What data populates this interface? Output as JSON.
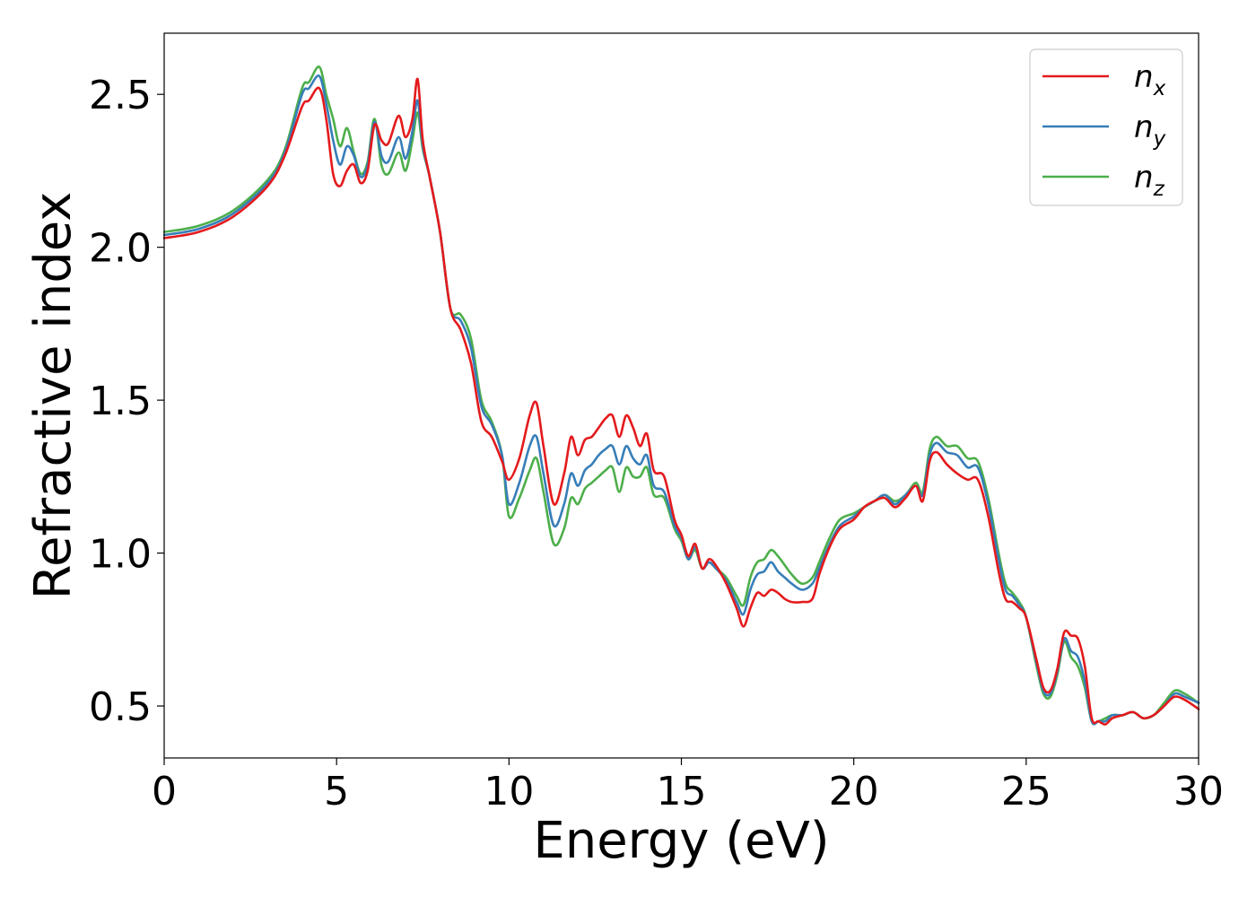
{
  "chart_data": {
    "type": "line",
    "title": "",
    "xlabel": "Energy (eV)",
    "ylabel": "Refractive index",
    "xlim": [
      0,
      30
    ],
    "ylim": [
      0.33,
      2.7
    ],
    "xticks": [
      0,
      5,
      10,
      15,
      20,
      25,
      30
    ],
    "xtick_labels": [
      "0",
      "5",
      "10",
      "15",
      "20",
      "25",
      "30"
    ],
    "yticks": [
      0.5,
      1.0,
      1.5,
      2.0,
      2.5
    ],
    "ytick_labels": [
      "0.5",
      "1.0",
      "1.5",
      "2.0",
      "2.5"
    ],
    "grid": false,
    "legend_position": "top-right",
    "series": [
      {
        "name": "n_x",
        "label_main": "n",
        "label_sub": "x",
        "color": "#e41a1c",
        "x": [
          0,
          1,
          2,
          3,
          3.5,
          4,
          4.2,
          4.5,
          4.7,
          4.9,
          5.1,
          5.3,
          5.5,
          5.7,
          5.9,
          6.1,
          6.3,
          6.5,
          6.8,
          7.0,
          7.2,
          7.35,
          7.5,
          7.7,
          8.0,
          8.3,
          8.6,
          8.9,
          9.2,
          9.5,
          9.8,
          10.0,
          10.3,
          10.6,
          10.8,
          11.0,
          11.3,
          11.6,
          11.8,
          12.0,
          12.2,
          12.4,
          12.6,
          12.8,
          13.0,
          13.2,
          13.4,
          13.6,
          13.8,
          14.0,
          14.2,
          14.5,
          14.8,
          15.0,
          15.2,
          15.4,
          15.6,
          15.8,
          16.0,
          16.3,
          16.6,
          16.8,
          17.0,
          17.2,
          17.4,
          17.6,
          17.8,
          18.0,
          18.2,
          18.5,
          18.8,
          19.0,
          19.3,
          19.6,
          20.0,
          20.3,
          20.6,
          20.9,
          21.2,
          21.5,
          21.8,
          22.0,
          22.2,
          22.4,
          22.7,
          23.0,
          23.3,
          23.6,
          23.9,
          24.2,
          24.4,
          24.6,
          24.8,
          25.0,
          25.3,
          25.5,
          25.7,
          25.9,
          26.1,
          26.3,
          26.5,
          26.7,
          26.9,
          27.1,
          27.3,
          27.5,
          27.8,
          28.1,
          28.4,
          28.7,
          29.0,
          29.3,
          29.6,
          30.0
        ],
        "y": [
          2.03,
          2.05,
          2.1,
          2.2,
          2.3,
          2.46,
          2.48,
          2.52,
          2.42,
          2.24,
          2.2,
          2.25,
          2.27,
          2.21,
          2.25,
          2.4,
          2.35,
          2.34,
          2.43,
          2.36,
          2.42,
          2.55,
          2.35,
          2.23,
          2.05,
          1.8,
          1.73,
          1.62,
          1.43,
          1.38,
          1.3,
          1.24,
          1.31,
          1.45,
          1.49,
          1.35,
          1.16,
          1.26,
          1.38,
          1.32,
          1.37,
          1.38,
          1.41,
          1.44,
          1.45,
          1.38,
          1.45,
          1.41,
          1.35,
          1.39,
          1.27,
          1.25,
          1.11,
          1.06,
          0.99,
          1.03,
          0.95,
          0.98,
          0.96,
          0.9,
          0.82,
          0.76,
          0.82,
          0.87,
          0.86,
          0.88,
          0.87,
          0.85,
          0.84,
          0.84,
          0.85,
          0.93,
          1.02,
          1.08,
          1.11,
          1.15,
          1.17,
          1.18,
          1.15,
          1.18,
          1.22,
          1.17,
          1.3,
          1.33,
          1.29,
          1.26,
          1.24,
          1.24,
          1.12,
          0.94,
          0.85,
          0.84,
          0.82,
          0.79,
          0.65,
          0.56,
          0.55,
          0.62,
          0.74,
          0.73,
          0.72,
          0.63,
          0.46,
          0.45,
          0.44,
          0.46,
          0.47,
          0.48,
          0.46,
          0.47,
          0.5,
          0.53,
          0.52,
          0.49
        ]
      },
      {
        "name": "n_y",
        "label_main": "n",
        "label_sub": "y",
        "color": "#377eb8",
        "x": [
          0,
          1,
          2,
          3,
          3.5,
          4,
          4.2,
          4.5,
          4.7,
          4.9,
          5.1,
          5.3,
          5.5,
          5.7,
          5.9,
          6.1,
          6.3,
          6.5,
          6.8,
          7.0,
          7.2,
          7.35,
          7.5,
          7.7,
          8.0,
          8.3,
          8.6,
          8.9,
          9.2,
          9.5,
          9.8,
          10.0,
          10.3,
          10.6,
          10.8,
          11.0,
          11.3,
          11.6,
          11.8,
          12.0,
          12.2,
          12.4,
          12.6,
          12.8,
          13.0,
          13.2,
          13.4,
          13.6,
          13.8,
          14.0,
          14.2,
          14.5,
          14.8,
          15.0,
          15.2,
          15.4,
          15.6,
          15.8,
          16.0,
          16.3,
          16.6,
          16.8,
          17.0,
          17.2,
          17.4,
          17.6,
          17.8,
          18.0,
          18.2,
          18.5,
          18.8,
          19.0,
          19.3,
          19.6,
          20.0,
          20.3,
          20.6,
          20.9,
          21.2,
          21.5,
          21.8,
          22.0,
          22.2,
          22.4,
          22.7,
          23.0,
          23.3,
          23.6,
          23.9,
          24.2,
          24.4,
          24.6,
          24.8,
          25.0,
          25.3,
          25.5,
          25.7,
          25.9,
          26.1,
          26.3,
          26.5,
          26.7,
          26.9,
          27.1,
          27.3,
          27.5,
          27.8,
          28.1,
          28.4,
          28.7,
          29.0,
          29.3,
          29.6,
          30.0
        ],
        "y": [
          2.04,
          2.06,
          2.11,
          2.21,
          2.31,
          2.5,
          2.52,
          2.56,
          2.47,
          2.35,
          2.27,
          2.33,
          2.3,
          2.23,
          2.27,
          2.41,
          2.3,
          2.28,
          2.36,
          2.29,
          2.38,
          2.48,
          2.33,
          2.23,
          2.05,
          1.8,
          1.76,
          1.67,
          1.48,
          1.42,
          1.32,
          1.16,
          1.23,
          1.35,
          1.38,
          1.26,
          1.09,
          1.16,
          1.26,
          1.22,
          1.27,
          1.29,
          1.32,
          1.34,
          1.35,
          1.29,
          1.35,
          1.31,
          1.29,
          1.32,
          1.22,
          1.2,
          1.09,
          1.05,
          0.98,
          1.02,
          0.95,
          0.97,
          0.95,
          0.91,
          0.84,
          0.8,
          0.88,
          0.93,
          0.94,
          0.97,
          0.94,
          0.92,
          0.9,
          0.88,
          0.9,
          0.95,
          1.03,
          1.09,
          1.12,
          1.15,
          1.17,
          1.19,
          1.16,
          1.19,
          1.22,
          1.19,
          1.32,
          1.36,
          1.33,
          1.32,
          1.28,
          1.28,
          1.16,
          0.98,
          0.88,
          0.86,
          0.83,
          0.79,
          0.64,
          0.55,
          0.54,
          0.61,
          0.72,
          0.68,
          0.66,
          0.58,
          0.45,
          0.45,
          0.45,
          0.47,
          0.47,
          0.48,
          0.46,
          0.47,
          0.5,
          0.54,
          0.53,
          0.51
        ]
      },
      {
        "name": "n_z",
        "label_main": "n",
        "label_sub": "z",
        "color": "#4daf4a",
        "x": [
          0,
          1,
          2,
          3,
          3.5,
          4,
          4.2,
          4.5,
          4.7,
          4.9,
          5.1,
          5.3,
          5.5,
          5.7,
          5.9,
          6.1,
          6.3,
          6.5,
          6.8,
          7.0,
          7.2,
          7.35,
          7.5,
          7.7,
          8.0,
          8.3,
          8.6,
          8.9,
          9.2,
          9.5,
          9.8,
          10.0,
          10.3,
          10.6,
          10.8,
          11.0,
          11.3,
          11.6,
          11.8,
          12.0,
          12.2,
          12.4,
          12.6,
          12.8,
          13.0,
          13.2,
          13.4,
          13.6,
          13.8,
          14.0,
          14.2,
          14.5,
          14.8,
          15.0,
          15.2,
          15.4,
          15.6,
          15.8,
          16.0,
          16.3,
          16.6,
          16.8,
          17.0,
          17.2,
          17.4,
          17.6,
          17.8,
          18.0,
          18.2,
          18.5,
          18.8,
          19.0,
          19.3,
          19.6,
          20.0,
          20.3,
          20.6,
          20.9,
          21.2,
          21.5,
          21.8,
          22.0,
          22.2,
          22.4,
          22.7,
          23.0,
          23.3,
          23.6,
          23.9,
          24.2,
          24.4,
          24.6,
          24.8,
          25.0,
          25.3,
          25.5,
          25.7,
          25.9,
          26.1,
          26.3,
          26.5,
          26.7,
          26.9,
          27.1,
          27.3,
          27.5,
          27.8,
          28.1,
          28.4,
          28.7,
          29.0,
          29.3,
          29.6,
          30.0
        ],
        "y": [
          2.05,
          2.07,
          2.12,
          2.22,
          2.32,
          2.52,
          2.54,
          2.59,
          2.5,
          2.42,
          2.33,
          2.39,
          2.31,
          2.24,
          2.28,
          2.42,
          2.27,
          2.24,
          2.31,
          2.25,
          2.35,
          2.44,
          2.32,
          2.23,
          2.05,
          1.8,
          1.78,
          1.7,
          1.5,
          1.43,
          1.32,
          1.12,
          1.18,
          1.27,
          1.31,
          1.2,
          1.03,
          1.08,
          1.18,
          1.16,
          1.21,
          1.23,
          1.25,
          1.27,
          1.28,
          1.2,
          1.28,
          1.25,
          1.25,
          1.28,
          1.19,
          1.18,
          1.08,
          1.04,
          0.98,
          1.01,
          0.95,
          0.97,
          0.95,
          0.92,
          0.86,
          0.83,
          0.92,
          0.97,
          0.98,
          1.01,
          0.99,
          0.96,
          0.93,
          0.9,
          0.92,
          0.97,
          1.05,
          1.11,
          1.13,
          1.15,
          1.17,
          1.19,
          1.17,
          1.19,
          1.23,
          1.2,
          1.34,
          1.38,
          1.35,
          1.35,
          1.31,
          1.3,
          1.18,
          1.0,
          0.9,
          0.87,
          0.84,
          0.79,
          0.63,
          0.54,
          0.53,
          0.6,
          0.71,
          0.66,
          0.63,
          0.56,
          0.45,
          0.45,
          0.46,
          0.47,
          0.47,
          0.48,
          0.46,
          0.47,
          0.51,
          0.55,
          0.54,
          0.51
        ]
      }
    ]
  }
}
